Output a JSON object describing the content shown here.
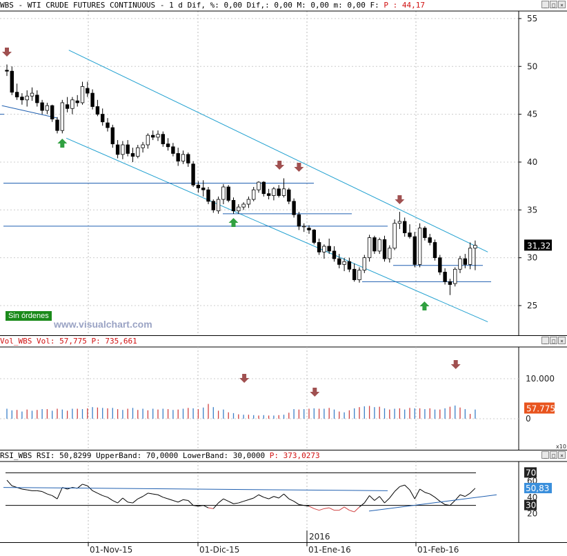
{
  "header": {
    "symbol": "WBS",
    "name": "WTI CRUDE FUTURES CONTINUOUS",
    "interval": "1 d",
    "dif_label": "Dif, %: 0,00",
    "dif2_label": "Dif,: 0,00",
    "m_label": "M: 0,00",
    "m2_label": "m: 0,00",
    "f_label": "F:",
    "p_label": "P : 44,17",
    "sep": "-"
  },
  "price_panel": {
    "y_ticks": [
      "55",
      "50",
      "45",
      "40",
      "35",
      "30",
      "25"
    ],
    "current_value": "31,32",
    "badge": "Sin órdenes",
    "watermark": "www.visualchart.com"
  },
  "volume_panel": {
    "label": "Vol_WBS Vol: 57,775",
    "p_label": "P: 735,661",
    "y_ticks": [
      "10.000",
      "0"
    ],
    "current_value": "57.775"
  },
  "rsi_panel": {
    "label": "RSI_WBS RSI: 50,8299 UpperBand: 70,0000 LowerBand: 30,0000",
    "p_label": "P: 373,0273",
    "y_ticks": [
      "60",
      "40",
      "20"
    ],
    "upper_band": "70",
    "lower_band": "30",
    "current_value": "50,83",
    "x10": "x10"
  },
  "x_axis": {
    "labels": [
      "01-Nov-15",
      "01-Dic-15",
      "01-Ene-16",
      "01-Feb-16"
    ],
    "year_marker": "2016"
  },
  "colors": {
    "bull_candle": "#ffffff",
    "bear_candle": "#000000",
    "channel": "#20a0d0",
    "support": "#1f5fb0",
    "arrow_down": "#a05050",
    "arrow_up": "#30a040",
    "vol_up": "#3a7fc8",
    "vol_down": "#d04040",
    "rsi_line": "#000000"
  },
  "chart_data": {
    "type": "candlestick",
    "y_range": [
      22,
      56
    ],
    "ohlc": [
      [
        0,
        49.6,
        50.2,
        49.0,
        49.5
      ],
      [
        1,
        49.5,
        50.0,
        47.0,
        47.3
      ],
      [
        2,
        47.3,
        48.2,
        46.5,
        46.8
      ],
      [
        3,
        46.8,
        47.2,
        46.0,
        46.5
      ],
      [
        4,
        46.5,
        47.5,
        45.8,
        46.9
      ],
      [
        5,
        46.9,
        47.8,
        46.4,
        47.2
      ],
      [
        6,
        47.0,
        47.5,
        45.8,
        46.2
      ],
      [
        7,
        46.2,
        46.5,
        45.0,
        45.4
      ],
      [
        8,
        45.4,
        46.2,
        45.0,
        45.9
      ],
      [
        9,
        45.9,
        46.0,
        44.2,
        44.5
      ],
      [
        10,
        44.4,
        44.7,
        43.0,
        43.3
      ],
      [
        11,
        43.3,
        46.5,
        43.0,
        46.2
      ],
      [
        12,
        46.0,
        46.8,
        45.2,
        45.6
      ],
      [
        13,
        45.6,
        46.8,
        45.0,
        46.5
      ],
      [
        14,
        46.4,
        47.0,
        45.8,
        46.2
      ],
      [
        15,
        46.2,
        48.4,
        46.0,
        47.9
      ],
      [
        16,
        47.7,
        48.4,
        46.8,
        47.2
      ],
      [
        17,
        47.2,
        47.6,
        45.5,
        45.8
      ],
      [
        18,
        45.8,
        46.5,
        44.8,
        45.0
      ],
      [
        19,
        45.0,
        45.6,
        43.8,
        44.2
      ],
      [
        20,
        44.1,
        44.6,
        43.2,
        43.6
      ],
      [
        21,
        43.6,
        43.9,
        41.5,
        41.9
      ],
      [
        22,
        41.8,
        42.3,
        40.4,
        40.8
      ],
      [
        23,
        40.8,
        42.2,
        40.3,
        41.8
      ],
      [
        24,
        41.8,
        42.3,
        40.6,
        40.9
      ],
      [
        25,
        40.9,
        41.5,
        40.0,
        40.6
      ],
      [
        26,
        40.6,
        41.8,
        40.4,
        41.5
      ],
      [
        27,
        41.5,
        42.1,
        41.0,
        41.8
      ],
      [
        28,
        41.8,
        43.0,
        41.4,
        42.8
      ],
      [
        29,
        42.8,
        43.3,
        42.3,
        42.6
      ],
      [
        30,
        42.6,
        43.3,
        42.2,
        42.9
      ],
      [
        31,
        42.9,
        43.2,
        41.6,
        41.9
      ],
      [
        32,
        41.9,
        42.5,
        41.2,
        41.6
      ],
      [
        33,
        41.6,
        42.0,
        40.6,
        40.9
      ],
      [
        34,
        40.9,
        41.5,
        39.6,
        40.1
      ],
      [
        35,
        40.1,
        41.2,
        39.8,
        40.8
      ],
      [
        36,
        40.8,
        41.0,
        39.5,
        39.9
      ],
      [
        37,
        39.8,
        40.1,
        37.4,
        37.6
      ],
      [
        38,
        37.6,
        38.0,
        36.8,
        37.3
      ],
      [
        39,
        37.3,
        38.1,
        36.4,
        37.1
      ],
      [
        40,
        37.1,
        37.4,
        35.6,
        35.9
      ],
      [
        41,
        35.9,
        36.1,
        34.7,
        35.0
      ],
      [
        42,
        34.9,
        36.4,
        34.6,
        36.1
      ],
      [
        43,
        36.1,
        37.7,
        35.6,
        37.4
      ],
      [
        44,
        37.4,
        37.6,
        35.8,
        36.0
      ],
      [
        45,
        36.0,
        36.3,
        34.6,
        34.9
      ],
      [
        46,
        34.9,
        35.6,
        34.6,
        35.3
      ],
      [
        47,
        35.3,
        35.8,
        35.0,
        35.6
      ],
      [
        48,
        35.6,
        36.4,
        35.2,
        36.1
      ],
      [
        49,
        36.1,
        37.4,
        35.9,
        37.1
      ],
      [
        50,
        37.1,
        38.0,
        36.8,
        37.9
      ],
      [
        51,
        37.9,
        38.0,
        36.4,
        36.7
      ],
      [
        52,
        36.7,
        37.2,
        36.1,
        36.5
      ],
      [
        53,
        36.5,
        37.4,
        36.0,
        37.2
      ],
      [
        54,
        37.2,
        37.6,
        36.3,
        36.5
      ],
      [
        55,
        36.5,
        38.3,
        36.3,
        37.2
      ],
      [
        56,
        37.1,
        37.3,
        35.6,
        35.9
      ],
      [
        57,
        35.9,
        36.2,
        34.2,
        34.5
      ],
      [
        58,
        34.5,
        34.8,
        32.9,
        33.3
      ],
      [
        59,
        33.3,
        33.6,
        32.7,
        33.3
      ],
      [
        60,
        33.1,
        33.4,
        32.5,
        32.9
      ],
      [
        61,
        32.9,
        33.0,
        31.4,
        31.6
      ],
      [
        62,
        31.6,
        32.0,
        30.3,
        30.6
      ],
      [
        63,
        30.6,
        31.4,
        29.9,
        31.2
      ],
      [
        64,
        31.2,
        32.0,
        30.4,
        30.7
      ],
      [
        65,
        30.7,
        31.2,
        29.6,
        29.9
      ],
      [
        66,
        29.9,
        30.4,
        28.9,
        29.3
      ],
      [
        67,
        29.3,
        30.0,
        28.6,
        29.6
      ],
      [
        68,
        29.6,
        30.0,
        28.5,
        28.8
      ],
      [
        69,
        28.8,
        29.4,
        27.5,
        27.7
      ],
      [
        70,
        27.7,
        29.0,
        27.4,
        28.7
      ],
      [
        71,
        28.7,
        30.3,
        28.4,
        30.0
      ],
      [
        72,
        30.0,
        32.4,
        29.6,
        32.1
      ],
      [
        73,
        32.1,
        32.3,
        30.4,
        30.7
      ],
      [
        74,
        30.7,
        32.1,
        30.4,
        31.9
      ],
      [
        75,
        31.9,
        32.3,
        29.6,
        29.9
      ],
      [
        76,
        29.9,
        31.3,
        29.5,
        31.0
      ],
      [
        77,
        31.0,
        34.0,
        30.8,
        33.6
      ],
      [
        78,
        33.6,
        34.8,
        33.0,
        33.8
      ],
      [
        79,
        33.8,
        34.2,
        32.2,
        32.6
      ],
      [
        80,
        32.6,
        33.5,
        32.0,
        32.2
      ],
      [
        81,
        32.2,
        32.7,
        29.0,
        29.3
      ],
      [
        82,
        29.3,
        33.6,
        29.0,
        33.1
      ],
      [
        83,
        33.1,
        33.3,
        31.8,
        32.1
      ],
      [
        84,
        32.1,
        32.5,
        31.3,
        31.6
      ],
      [
        85,
        31.6,
        31.9,
        29.7,
        30.0
      ],
      [
        86,
        30.0,
        30.3,
        28.2,
        28.5
      ],
      [
        87,
        28.5,
        28.9,
        27.2,
        27.5
      ],
      [
        88,
        27.5,
        27.8,
        26.1,
        27.2
      ],
      [
        89,
        27.3,
        29.0,
        27.0,
        28.8
      ],
      [
        90,
        28.8,
        30.2,
        28.4,
        29.9
      ],
      [
        91,
        29.9,
        30.4,
        28.9,
        29.3
      ],
      [
        92,
        29.3,
        31.6,
        28.8,
        31.0
      ],
      [
        93,
        31.0,
        31.8,
        28.7,
        31.3
      ]
    ],
    "volume": [
      [
        "u",
        2.5
      ],
      [
        "u",
        2.1
      ],
      [
        "d",
        2.2
      ],
      [
        "u",
        1.8
      ],
      [
        "d",
        2.3
      ],
      [
        "u",
        2.0
      ],
      [
        "d",
        2.2
      ],
      [
        "u",
        2.4
      ],
      [
        "d",
        2.4
      ],
      [
        "u",
        2.0
      ],
      [
        "d",
        2.5
      ],
      [
        "u",
        2.3
      ],
      [
        "d",
        2.0
      ],
      [
        "u",
        2.5
      ],
      [
        "d",
        2.5
      ],
      [
        "u",
        2.4
      ],
      [
        "d",
        2.6
      ],
      [
        "u",
        2.9
      ],
      [
        "d",
        2.8
      ],
      [
        "u",
        2.7
      ],
      [
        "d",
        2.6
      ],
      [
        "u",
        2.7
      ],
      [
        "d",
        2.4
      ],
      [
        "u",
        2.2
      ],
      [
        "d",
        2.5
      ],
      [
        "u",
        2.7
      ],
      [
        "d",
        2.2
      ],
      [
        "u",
        2.5
      ],
      [
        "d",
        2.1
      ],
      [
        "u",
        2.5
      ],
      [
        "d",
        2.3
      ],
      [
        "u",
        2.5
      ],
      [
        "d",
        2.4
      ],
      [
        "u",
        2.2
      ],
      [
        "d",
        2.3
      ],
      [
        "u",
        2.5
      ],
      [
        "d",
        2.7
      ],
      [
        "u",
        2.6
      ],
      [
        "d",
        2.4
      ],
      [
        "u",
        2.8
      ],
      [
        "d",
        3.7
      ],
      [
        "u",
        2.9
      ],
      [
        "d",
        2.0
      ],
      [
        "u",
        2.3
      ],
      [
        "d",
        1.6
      ],
      [
        "u",
        1.4
      ],
      [
        "d",
        1.1
      ],
      [
        "u",
        1.0
      ],
      [
        "d",
        1.0
      ],
      [
        "u",
        0.9
      ],
      [
        "d",
        0.8
      ],
      [
        "u",
        0.9
      ],
      [
        "d",
        0.8
      ],
      [
        "u",
        0.8
      ],
      [
        "d",
        0.9
      ],
      [
        "u",
        1.0
      ],
      [
        "d",
        1.5
      ],
      [
        "u",
        2.4
      ],
      [
        "d",
        2.3
      ],
      [
        "u",
        2.4
      ],
      [
        "d",
        2.5
      ],
      [
        "u",
        2.6
      ],
      [
        "d",
        2.5
      ],
      [
        "u",
        2.5
      ],
      [
        "d",
        2.7
      ],
      [
        "u",
        2.3
      ],
      [
        "d",
        1.8
      ],
      [
        "u",
        1.6
      ],
      [
        "d",
        2.1
      ],
      [
        "u",
        2.6
      ],
      [
        "d",
        2.9
      ],
      [
        "u",
        3.1
      ],
      [
        "d",
        3.2
      ],
      [
        "u",
        2.9
      ],
      [
        "d",
        3.0
      ],
      [
        "u",
        2.6
      ],
      [
        "d",
        2.3
      ],
      [
        "u",
        2.5
      ],
      [
        "d",
        2.6
      ],
      [
        "u",
        2.3
      ],
      [
        "d",
        2.7
      ],
      [
        "u",
        2.6
      ],
      [
        "d",
        2.6
      ],
      [
        "u",
        2.4
      ],
      [
        "d",
        2.6
      ],
      [
        "u",
        2.3
      ],
      [
        "d",
        2.3
      ],
      [
        "u",
        2.6
      ],
      [
        "d",
        3.0
      ],
      [
        "u",
        3.3
      ],
      [
        "d",
        2.8
      ],
      [
        "u",
        2.4
      ],
      [
        "d",
        1.2
      ],
      [
        "u",
        2.3
      ]
    ],
    "rsi": [
      61,
      54,
      52,
      50,
      49,
      48,
      48,
      47,
      44,
      42,
      38,
      52,
      50,
      52,
      51,
      56,
      54,
      48,
      45,
      42,
      40,
      36,
      33,
      39,
      34,
      33,
      38,
      41,
      45,
      44,
      43,
      40,
      38,
      36,
      34,
      37,
      36,
      30,
      29,
      30,
      27,
      26,
      33,
      38,
      35,
      32,
      33,
      35,
      37,
      39,
      43,
      40,
      38,
      41,
      39,
      44,
      38,
      35,
      31,
      30,
      29,
      26,
      24,
      26,
      27,
      24,
      24,
      28,
      24,
      22,
      28,
      33,
      42,
      36,
      41,
      33,
      39,
      47,
      53,
      55,
      49,
      38,
      50,
      46,
      44,
      40,
      35,
      31,
      30,
      36,
      43,
      41,
      45,
      51
    ],
    "annotations": {
      "down_arrows_price": [
        0,
        54,
        58,
        78
      ],
      "up_arrows_price": [
        11,
        45,
        83
      ]
    }
  }
}
